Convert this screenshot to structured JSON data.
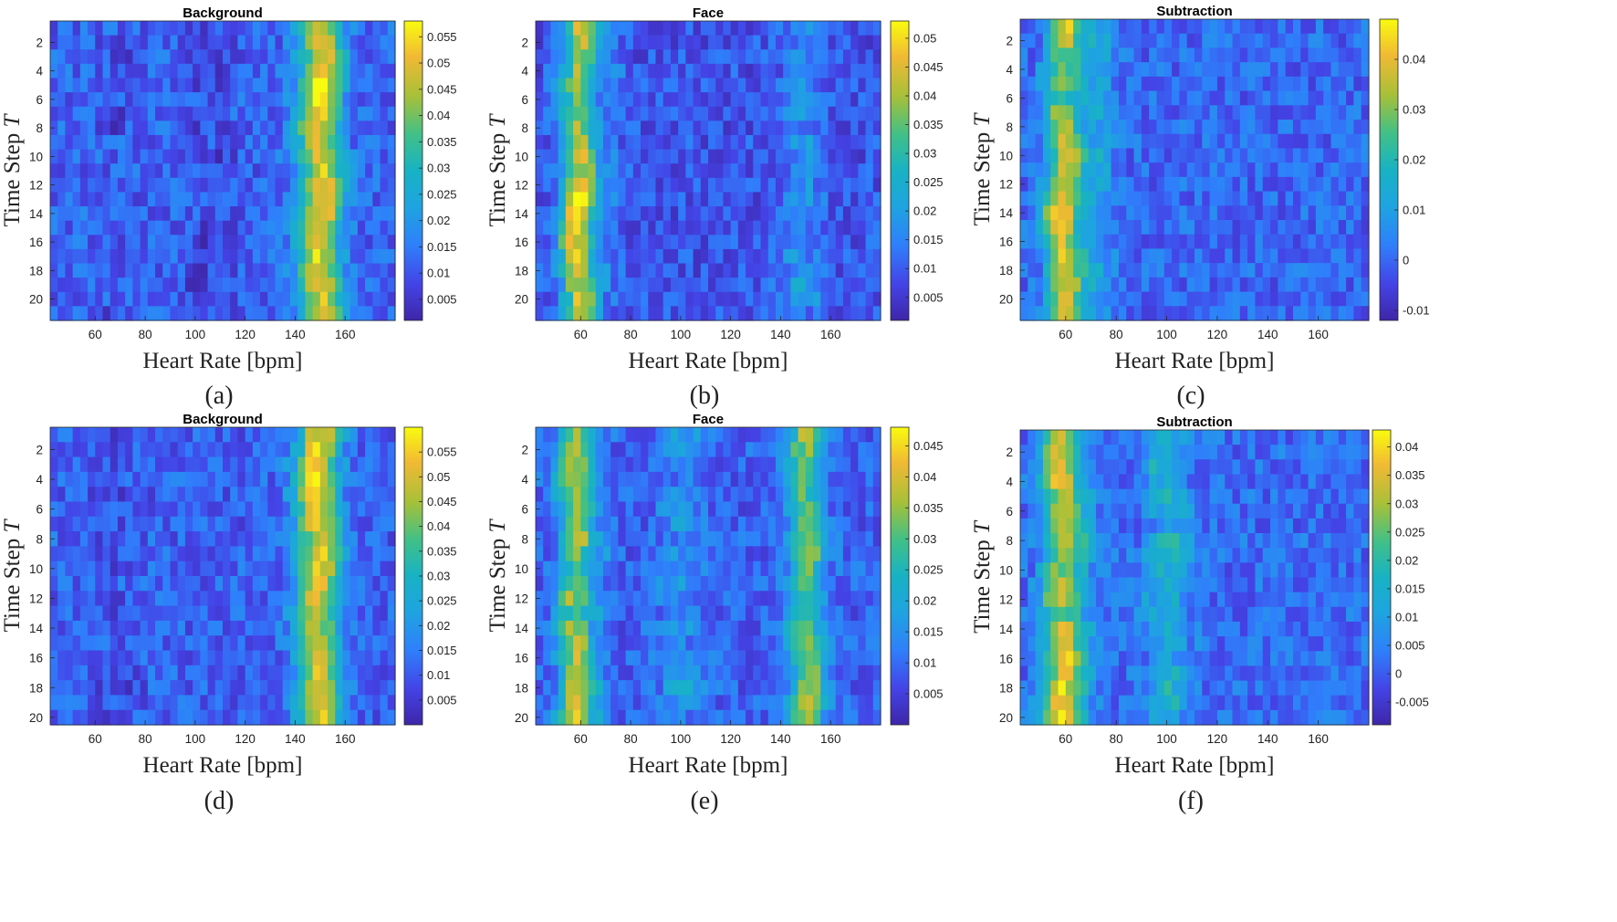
{
  "figure": {
    "panel_captions": [
      "(a)",
      "(b)",
      "(c)",
      "(d)",
      "(e)",
      "(f)"
    ]
  },
  "colors": {
    "colormap": "parula",
    "low": "#3e26a8",
    "mid": "#18b2c4",
    "high": "#f9fb0e"
  },
  "chart_data": [
    {
      "type": "heatmap",
      "caption": "(a)",
      "title": "Background",
      "xlabel": "Heart Rate [bpm]",
      "ylabel": "Time Step T",
      "xlim": [
        42,
        180
      ],
      "ylim": [
        0.5,
        21.5
      ],
      "xticks": [
        "60",
        "80",
        "100",
        "120",
        "140",
        "160"
      ],
      "yticks": [
        "2",
        "4",
        "6",
        "8",
        "10",
        "12",
        "14",
        "16",
        "18",
        "20"
      ],
      "rows": 21,
      "clim": [
        0.001,
        0.058
      ],
      "cbar_ticks": [
        "0.005",
        "0.01",
        "0.015",
        "0.02",
        "0.025",
        "0.03",
        "0.035",
        "0.04",
        "0.045",
        "0.05",
        "0.055"
      ],
      "peaks": [
        {
          "bpm_center": 150,
          "width": 6,
          "amplitude": 0.052,
          "row_values": [
            0.049,
            0.051,
            0.052,
            0.054,
            0.055,
            0.055,
            0.054,
            0.052,
            0.051,
            0.05,
            0.05,
            0.051,
            0.052,
            0.053,
            0.053,
            0.052,
            0.051,
            0.05,
            0.049,
            0.048,
            0.047
          ]
        },
        {
          "bpm_center": 68,
          "width": 6,
          "amplitude": 0.01
        },
        {
          "bpm_center": 105,
          "width": 8,
          "amplitude": 0.008
        }
      ],
      "baseline": 0.012
    },
    {
      "type": "heatmap",
      "caption": "(b)",
      "title": "Face",
      "xlabel": "Heart Rate [bpm]",
      "ylabel": "Time Step T",
      "xlim": [
        42,
        180
      ],
      "ylim": [
        0.5,
        21.5
      ],
      "xticks": [
        "60",
        "80",
        "100",
        "120",
        "140",
        "160"
      ],
      "yticks": [
        "2",
        "4",
        "6",
        "8",
        "10",
        "12",
        "14",
        "16",
        "18",
        "20"
      ],
      "rows": 21,
      "clim": [
        0.001,
        0.053
      ],
      "cbar_ticks": [
        "0.005",
        "0.01",
        "0.015",
        "0.02",
        "0.025",
        "0.03",
        "0.035",
        "0.04",
        "0.045",
        "0.05"
      ],
      "peaks": [
        {
          "bpm_center": 59,
          "width": 5,
          "amplitude": 0.045,
          "row_values": [
            0.046,
            0.042,
            0.04,
            0.039,
            0.038,
            0.034,
            0.038,
            0.04,
            0.042,
            0.043,
            0.043,
            0.045,
            0.05,
            0.05,
            0.048,
            0.046,
            0.044,
            0.043,
            0.044,
            0.045,
            0.045
          ]
        },
        {
          "bpm_center": 148,
          "width": 6,
          "amplitude": 0.018
        },
        {
          "bpm_center": 72,
          "width": 5,
          "amplitude": 0.012
        }
      ],
      "baseline": 0.009
    },
    {
      "type": "heatmap",
      "caption": "(c)",
      "title": "Subtraction",
      "xlabel": "Heart Rate [bpm]",
      "ylabel": "Time Step T",
      "xlim": [
        42,
        180
      ],
      "ylim": [
        0.5,
        21.5
      ],
      "xticks": [
        "60",
        "80",
        "100",
        "120",
        "140",
        "160"
      ],
      "yticks": [
        "2",
        "4",
        "6",
        "8",
        "10",
        "12",
        "14",
        "16",
        "18",
        "20"
      ],
      "rows": 21,
      "clim": [
        -0.012,
        0.048
      ],
      "cbar_ticks": [
        "-0.01",
        "0",
        "0.01",
        "0.02",
        "0.03",
        "0.04"
      ],
      "peaks": [
        {
          "bpm_center": 59,
          "width": 5,
          "amplitude": 0.036,
          "row_values": [
            0.04,
            0.032,
            0.03,
            0.03,
            0.029,
            0.025,
            0.031,
            0.034,
            0.036,
            0.037,
            0.038,
            0.039,
            0.044,
            0.044,
            0.041,
            0.04,
            0.038,
            0.037,
            0.038,
            0.039,
            0.039
          ]
        },
        {
          "bpm_center": 72,
          "width": 5,
          "amplitude": 0.01
        }
      ],
      "baseline": 0.0
    },
    {
      "type": "heatmap",
      "caption": "(d)",
      "title": "Background",
      "xlabel": "Heart Rate [bpm]",
      "ylabel": "Time Step T",
      "xlim": [
        42,
        180
      ],
      "ylim": [
        0.5,
        20.5
      ],
      "xticks": [
        "60",
        "80",
        "100",
        "120",
        "140",
        "160"
      ],
      "yticks": [
        "2",
        "4",
        "6",
        "8",
        "10",
        "12",
        "14",
        "16",
        "18",
        "20"
      ],
      "rows": 20,
      "clim": [
        0.0,
        0.06
      ],
      "cbar_ticks": [
        "0.005",
        "0.01",
        "0.015",
        "0.02",
        "0.025",
        "0.03",
        "0.035",
        "0.04",
        "0.045",
        "0.05",
        "0.055"
      ],
      "peaks": [
        {
          "bpm_center": 149,
          "width": 6,
          "amplitude": 0.053,
          "row_values": [
            0.053,
            0.054,
            0.055,
            0.056,
            0.056,
            0.055,
            0.054,
            0.05,
            0.055,
            0.054,
            0.053,
            0.052,
            0.051,
            0.051,
            0.052,
            0.052,
            0.052,
            0.053,
            0.053,
            0.052
          ]
        },
        {
          "bpm_center": 68,
          "width": 6,
          "amplitude": 0.009
        }
      ],
      "baseline": 0.011
    },
    {
      "type": "heatmap",
      "caption": "(e)",
      "title": "Face",
      "xlabel": "Heart Rate [bpm]",
      "ylabel": "Time Step T",
      "xlim": [
        42,
        180
      ],
      "ylim": [
        0.5,
        20.5
      ],
      "xticks": [
        "60",
        "80",
        "100",
        "120",
        "140",
        "160"
      ],
      "yticks": [
        "2",
        "4",
        "6",
        "8",
        "10",
        "12",
        "14",
        "16",
        "18",
        "20"
      ],
      "rows": 20,
      "clim": [
        0.0,
        0.048
      ],
      "cbar_ticks": [
        "0.005",
        "0.01",
        "0.015",
        "0.02",
        "0.025",
        "0.03",
        "0.035",
        "0.04",
        "0.045"
      ],
      "peaks": [
        {
          "bpm_center": 58,
          "width": 5,
          "amplitude": 0.036,
          "row_values": [
            0.034,
            0.036,
            0.038,
            0.039,
            0.036,
            0.032,
            0.034,
            0.036,
            0.03,
            0.028,
            0.034,
            0.036,
            0.028,
            0.036,
            0.038,
            0.038,
            0.038,
            0.039,
            0.04,
            0.04
          ]
        },
        {
          "bpm_center": 150,
          "width": 5,
          "amplitude": 0.032,
          "row_values": [
            0.036,
            0.034,
            0.03,
            0.028,
            0.03,
            0.03,
            0.03,
            0.032,
            0.034,
            0.03,
            0.03,
            0.028,
            0.03,
            0.032,
            0.034,
            0.034,
            0.034,
            0.036,
            0.038,
            0.036
          ]
        },
        {
          "bpm_center": 100,
          "width": 6,
          "amplitude": 0.016
        },
        {
          "bpm_center": 67,
          "width": 4,
          "amplitude": 0.012
        }
      ],
      "baseline": 0.009
    },
    {
      "type": "heatmap",
      "caption": "(f)",
      "title": "Subtraction",
      "xlabel": "Heart Rate [bpm]",
      "ylabel": "Time Step T",
      "xlim": [
        42,
        180
      ],
      "ylim": [
        0.5,
        20.5
      ],
      "xticks": [
        "60",
        "80",
        "100",
        "120",
        "140",
        "160"
      ],
      "yticks": [
        "2",
        "4",
        "6",
        "8",
        "10",
        "12",
        "14",
        "16",
        "18",
        "20"
      ],
      "rows": 20,
      "clim": [
        -0.009,
        0.043
      ],
      "cbar_ticks": [
        "-0.005",
        "0",
        "0.005",
        "0.01",
        "0.015",
        "0.02",
        "0.025",
        "0.03",
        "0.035",
        "0.04"
      ],
      "peaks": [
        {
          "bpm_center": 58,
          "width": 5,
          "amplitude": 0.032,
          "row_values": [
            0.03,
            0.031,
            0.033,
            0.034,
            0.032,
            0.029,
            0.031,
            0.032,
            0.027,
            0.025,
            0.031,
            0.033,
            0.025,
            0.034,
            0.036,
            0.036,
            0.036,
            0.037,
            0.037,
            0.037
          ]
        },
        {
          "bpm_center": 100,
          "width": 6,
          "amplitude": 0.014
        },
        {
          "bpm_center": 67,
          "width": 4,
          "amplitude": 0.01
        }
      ],
      "baseline": 0.002
    }
  ]
}
